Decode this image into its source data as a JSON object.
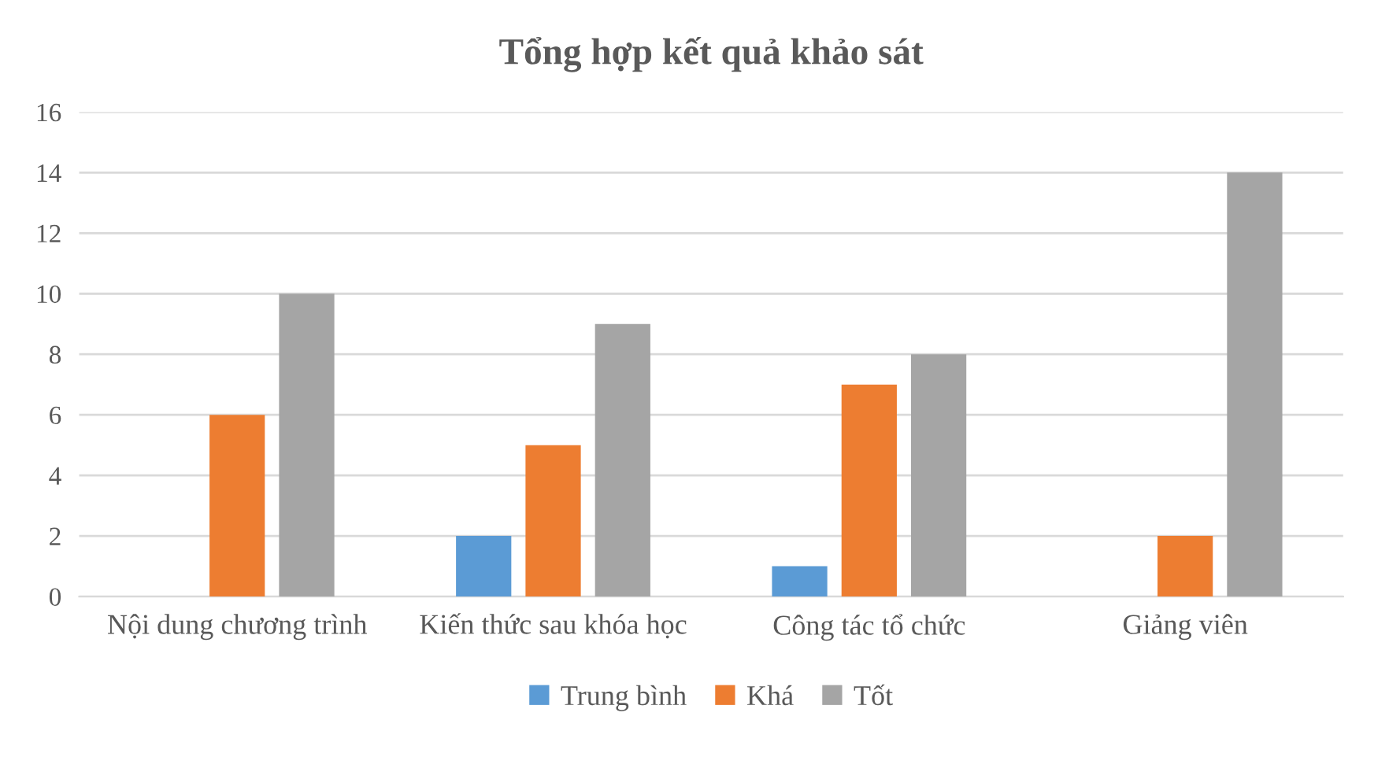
{
  "chart_data": {
    "type": "bar",
    "title": "Tổng hợp kết quả khảo sát",
    "categories": [
      "Nội dung chương trình",
      "Kiến thức sau khóa học",
      "Công tác tổ chức",
      "Giảng viên"
    ],
    "series": [
      {
        "name": "Trung bình",
        "color": "#5b9bd5",
        "values": [
          0,
          2,
          1,
          0
        ]
      },
      {
        "name": "Khá",
        "color": "#ed7d31",
        "values": [
          6,
          5,
          7,
          2
        ]
      },
      {
        "name": "Tốt",
        "color": "#a5a5a5",
        "values": [
          10,
          9,
          8,
          14
        ]
      }
    ],
    "ylim": [
      0,
      16
    ],
    "yticks": [
      0,
      2,
      4,
      6,
      8,
      10,
      12,
      14,
      16
    ],
    "grid": "y",
    "legend": "bottom"
  }
}
